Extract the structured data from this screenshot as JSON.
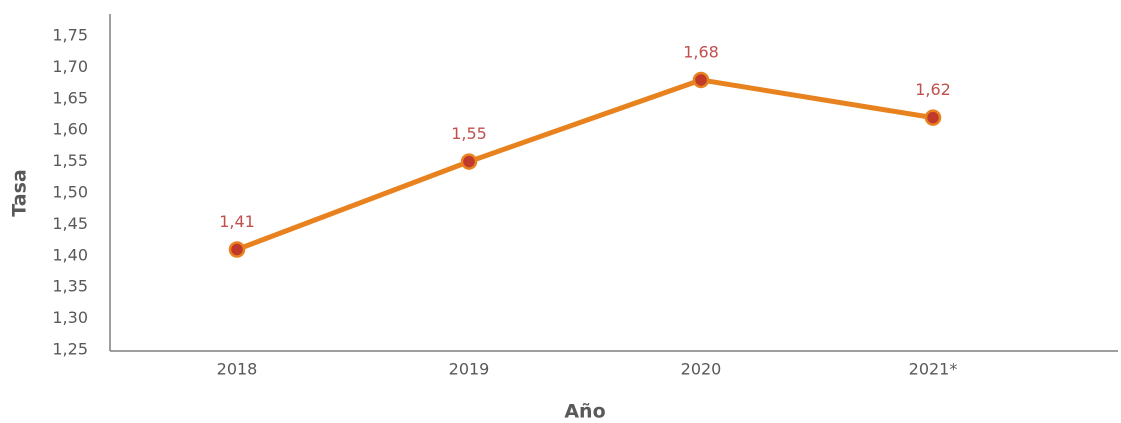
{
  "chart_data": {
    "type": "line",
    "xlabel": "Año",
    "ylabel": "Tasa",
    "categories": [
      "2018",
      "2019",
      "2020",
      "2021*"
    ],
    "values": [
      1.41,
      1.55,
      1.68,
      1.62
    ],
    "value_labels": [
      "1,41",
      "1,55",
      "1,68",
      "1,62"
    ],
    "color": "#e8821e",
    "marker_color": "#c0392b",
    "ylim": [
      1.25,
      1.75
    ],
    "yticks": [
      {
        "value": 1.25,
        "label": "1,25"
      },
      {
        "value": 1.3,
        "label": "1,30"
      },
      {
        "value": 1.35,
        "label": "1,35"
      },
      {
        "value": 1.4,
        "label": "1,40"
      },
      {
        "value": 1.45,
        "label": "1,45"
      },
      {
        "value": 1.5,
        "label": "1,50"
      },
      {
        "value": 1.55,
        "label": "1,55"
      },
      {
        "value": 1.6,
        "label": "1,60"
      },
      {
        "value": 1.65,
        "label": "1,65"
      },
      {
        "value": 1.7,
        "label": "1,70"
      },
      {
        "value": 1.75,
        "label": "1,75"
      }
    ],
    "grid": false
  }
}
